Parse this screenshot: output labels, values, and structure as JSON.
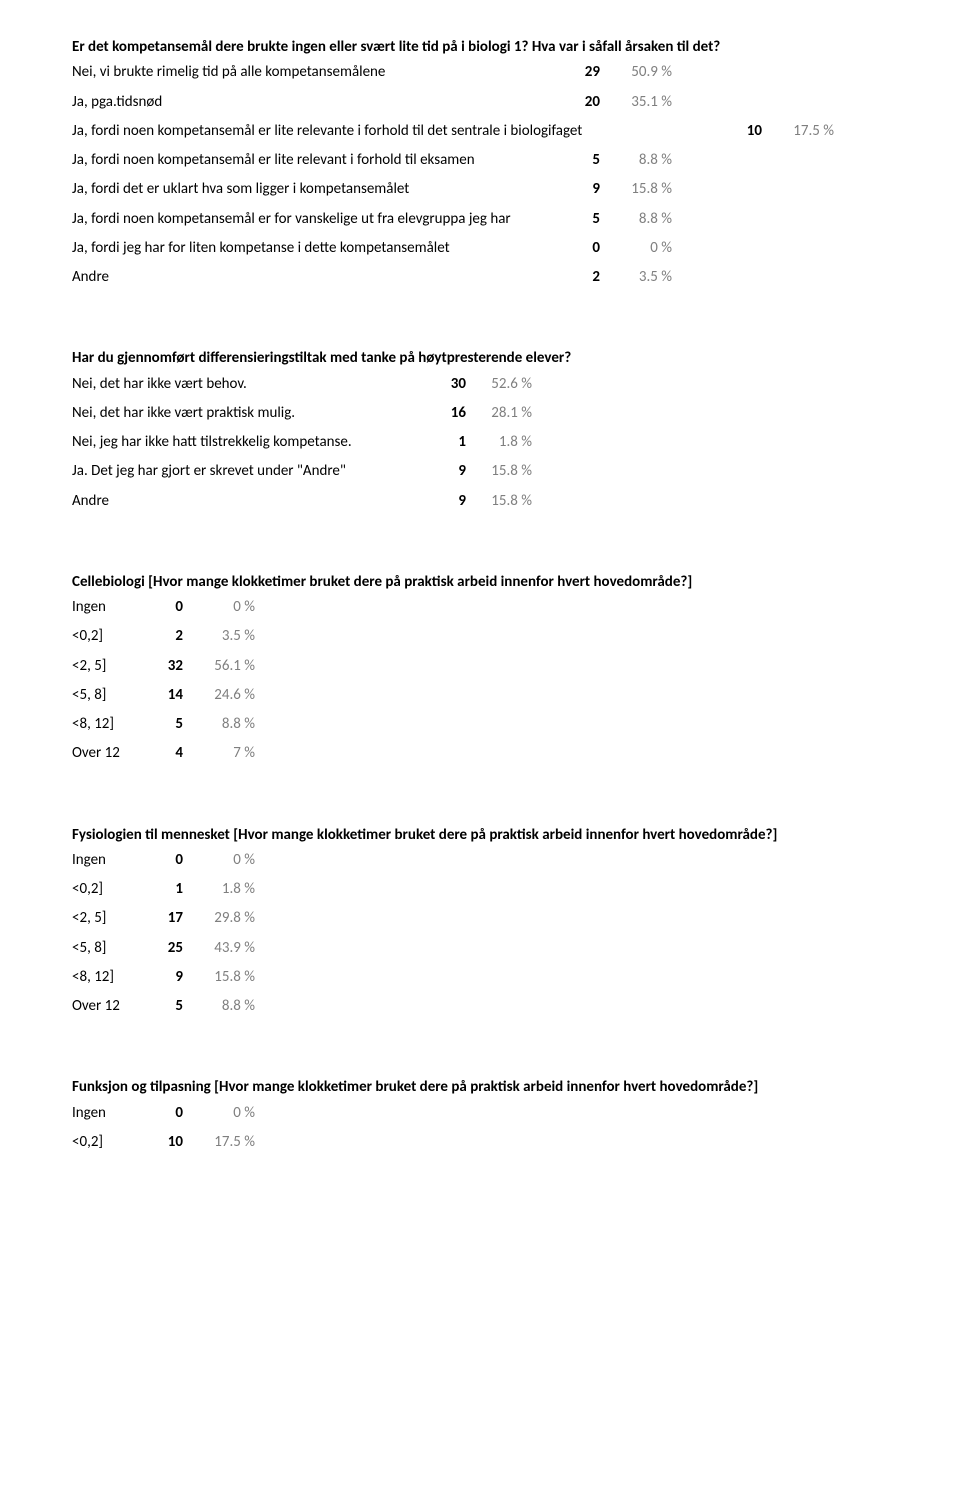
{
  "q1": {
    "title": "Er det kompetansemål dere brukte ingen eller svært lite tid på i biologi 1? Hva var i såfall årsaken til det?",
    "rows": [
      {
        "label": "Nei, vi brukte rimelig tid på alle kompetansemålene",
        "count": "29",
        "pct": "50.9 %",
        "w": "first"
      },
      {
        "label": "Ja, pga.tidsnød",
        "count": "20",
        "pct": "35.1 %",
        "w": "first"
      },
      {
        "label": "Ja, fordi noen kompetansemål er lite relevante i forhold til det sentrale i biologifaget",
        "count": "10",
        "pct": "17.5 %",
        "w": "full"
      },
      {
        "label": "Ja, fordi noen kompetansemål er lite relevant i forhold til eksamen",
        "count": "5",
        "pct": "8.8 %",
        "w": "first"
      },
      {
        "label": "Ja, fordi det er uklart hva som ligger i kompetansemålet",
        "count": "9",
        "pct": "15.8 %",
        "w": "first"
      },
      {
        "label": "Ja, fordi noen kompetansemål er for vanskelige ut fra elevgruppa jeg har",
        "count": "5",
        "pct": "8.8 %",
        "w": "first"
      },
      {
        "label": "Ja, fordi jeg har for liten kompetanse i dette kompetansemålet",
        "count": "0",
        "pct": "0 %",
        "w": "first"
      },
      {
        "label": "Andre",
        "count": "2",
        "pct": "3.5 %",
        "w": "first"
      }
    ]
  },
  "q2": {
    "title": "Har du gjennomført differensieringstiltak med tanke på høytpresterende elever?",
    "rows": [
      {
        "label": "Nei, det har ikke vært behov.",
        "count": "30",
        "pct": "52.6 %"
      },
      {
        "label": "Nei, det har ikke vært praktisk mulig.",
        "count": "16",
        "pct": "28.1 %"
      },
      {
        "label": "Nei, jeg har ikke hatt tilstrekkelig kompetanse.",
        "count": "1",
        "pct": "1.8 %"
      },
      {
        "label": "Ja. Det jeg har gjort er skrevet under \"Andre\"",
        "count": "9",
        "pct": "15.8 %"
      },
      {
        "label": "Andre",
        "count": "9",
        "pct": "15.8 %"
      }
    ]
  },
  "q3": {
    "title": "Cellebiologi [Hvor mange klokketimer bruket dere på praktisk arbeid innenfor hvert hovedområde?]",
    "rows": [
      {
        "label": "Ingen",
        "count": "0",
        "pct": "0 %"
      },
      {
        "label": "<0,2]",
        "count": "2",
        "pct": "3.5 %"
      },
      {
        "label": "<2, 5]",
        "count": "32",
        "pct": "56.1 %"
      },
      {
        "label": "<5, 8]",
        "count": "14",
        "pct": "24.6 %"
      },
      {
        "label": "<8, 12]",
        "count": "5",
        "pct": "8.8 %"
      },
      {
        "label": "Over 12",
        "count": "4",
        "pct": "7 %"
      }
    ]
  },
  "q4": {
    "title": "Fysiologien til mennesket [Hvor mange klokketimer bruket dere på praktisk arbeid innenfor hvert hovedområde?]",
    "rows": [
      {
        "label": "Ingen",
        "count": "0",
        "pct": "0 %"
      },
      {
        "label": "<0,2]",
        "count": "1",
        "pct": "1.8 %"
      },
      {
        "label": "<2, 5]",
        "count": "17",
        "pct": "29.8 %"
      },
      {
        "label": "<5, 8]",
        "count": "25",
        "pct": "43.9 %"
      },
      {
        "label": "<8, 12]",
        "count": "9",
        "pct": "15.8 %"
      },
      {
        "label": "Over 12",
        "count": "5",
        "pct": "8.8 %"
      }
    ]
  },
  "q5": {
    "title": "Funksjon og tilpasning [Hvor mange klokketimer bruket dere på praktisk arbeid innenfor hvert hovedområde?]",
    "rows": [
      {
        "label": "Ingen",
        "count": "0",
        "pct": "0 %"
      },
      {
        "label": "<0,2]",
        "count": "10",
        "pct": "17.5 %"
      }
    ]
  }
}
